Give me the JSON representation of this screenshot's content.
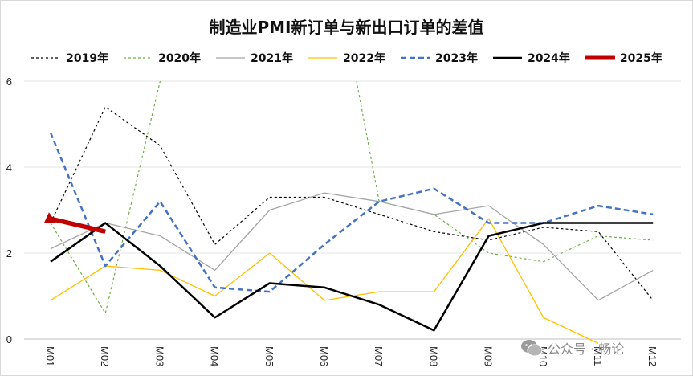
{
  "chart_data": {
    "type": "line",
    "title": "制造业PMI新订单与新出口订单的差值",
    "categories": [
      "M01",
      "M02",
      "M03",
      "M04",
      "M05",
      "M06",
      "M07",
      "M08",
      "M09",
      "M10",
      "M11",
      "M12"
    ],
    "ylim": [
      0,
      6
    ],
    "yticks": [
      "0",
      "2",
      "4",
      "6"
    ],
    "grid": true,
    "legend_position": "top",
    "series": [
      {
        "name": "2019年",
        "color": "#000000",
        "dash": "3,3",
        "width": 1.2,
        "values": [
          2.7,
          5.4,
          4.5,
          2.2,
          3.3,
          3.3,
          2.9,
          2.5,
          2.3,
          2.6,
          2.5,
          0.9
        ]
      },
      {
        "name": "2020年",
        "color": "#70ad47",
        "dash": "3,3",
        "width": 1.2,
        "values": [
          2.7,
          0.6,
          6.0,
          null,
          null,
          null,
          3.2,
          2.9,
          2.0,
          1.8,
          2.4,
          2.3
        ]
      },
      {
        "name": "2021年",
        "color": "#a5a5a5",
        "dash": "",
        "width": 1.3,
        "values": [
          2.1,
          2.7,
          2.4,
          1.6,
          3.0,
          3.4,
          3.2,
          2.9,
          3.1,
          2.2,
          0.9,
          1.6
        ]
      },
      {
        "name": "2022年",
        "color": "#ffc000",
        "dash": "",
        "width": 1.3,
        "values": [
          0.9,
          1.7,
          1.6,
          1.0,
          2.0,
          0.9,
          1.1,
          1.1,
          2.8,
          0.5,
          -0.1,
          null
        ]
      },
      {
        "name": "2023年",
        "color": "#4472c4",
        "dash": "7,4",
        "width": 2.5,
        "values": [
          4.8,
          1.7,
          3.2,
          1.2,
          1.1,
          2.2,
          3.2,
          3.5,
          2.7,
          2.7,
          3.1,
          2.9
        ]
      },
      {
        "name": "2024年",
        "color": "#000000",
        "dash": "",
        "width": 2.5,
        "values": [
          1.8,
          2.7,
          1.7,
          0.5,
          1.3,
          1.2,
          0.8,
          0.2,
          2.4,
          2.7,
          2.7,
          2.7
        ]
      },
      {
        "name": "2025年",
        "color": "#c00000",
        "dash": "",
        "width": 5.5,
        "values": [
          2.8,
          2.5,
          null,
          null,
          null,
          null,
          null,
          null,
          null,
          null,
          null,
          null
        ]
      }
    ]
  },
  "watermark": {
    "icon": "wechat-icon",
    "text": "公众号 · 畅论"
  }
}
